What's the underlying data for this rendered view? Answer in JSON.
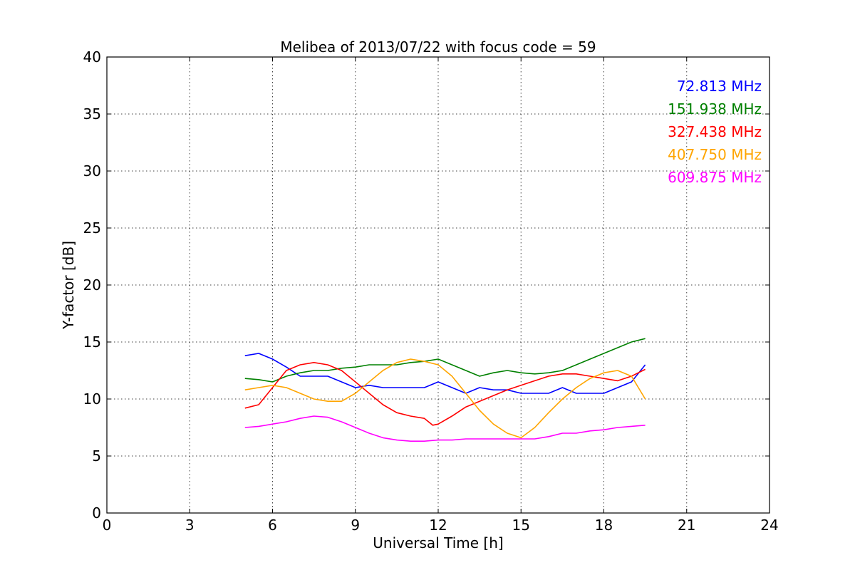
{
  "chart_data": {
    "type": "line",
    "title": "Melibea of 2013/07/22 with focus code = 59",
    "xlabel": "Universal Time [h]",
    "ylabel": "Y-factor [dB]",
    "xlim": [
      0,
      24
    ],
    "ylim": [
      0,
      40
    ],
    "xticks": [
      0,
      3,
      6,
      9,
      12,
      15,
      18,
      21,
      24
    ],
    "yticks": [
      0,
      5,
      10,
      15,
      20,
      25,
      30,
      35,
      40
    ],
    "grid": true,
    "legend": "top-right",
    "series": [
      {
        "name": "72.813 MHz",
        "color": "#0000ff",
        "x": [
          5.0,
          5.5,
          6.0,
          6.5,
          7.0,
          7.5,
          8.0,
          8.5,
          9.0,
          9.5,
          10.0,
          10.5,
          11.0,
          11.5,
          12.0,
          12.5,
          13.0,
          13.5,
          14.0,
          14.5,
          15.0,
          15.5,
          16.0,
          16.5,
          17.0,
          17.5,
          18.0,
          18.5,
          19.0,
          19.5
        ],
        "y": [
          13.8,
          14.0,
          13.5,
          12.8,
          12.0,
          12.0,
          12.0,
          11.5,
          11.0,
          11.2,
          11.0,
          11.0,
          11.0,
          11.0,
          11.5,
          11.0,
          10.5,
          11.0,
          10.8,
          10.8,
          10.5,
          10.5,
          10.5,
          11.0,
          10.5,
          10.5,
          10.5,
          11.0,
          11.5,
          13.0
        ]
      },
      {
        "name": "151.938 MHz",
        "color": "#008000",
        "x": [
          5.0,
          5.5,
          6.0,
          6.5,
          7.0,
          7.5,
          8.0,
          8.5,
          9.0,
          9.5,
          10.0,
          10.5,
          11.0,
          11.5,
          12.0,
          12.5,
          13.0,
          13.5,
          14.0,
          14.5,
          15.0,
          15.5,
          16.0,
          16.5,
          17.0,
          17.5,
          18.0,
          18.5,
          19.0,
          19.5
        ],
        "y": [
          11.8,
          11.7,
          11.5,
          12.0,
          12.3,
          12.5,
          12.5,
          12.7,
          12.8,
          13.0,
          13.0,
          13.0,
          13.2,
          13.3,
          13.5,
          13.0,
          12.5,
          12.0,
          12.3,
          12.5,
          12.3,
          12.2,
          12.3,
          12.5,
          13.0,
          13.5,
          14.0,
          14.5,
          15.0,
          15.3
        ]
      },
      {
        "name": "327.438 MHz",
        "color": "#ff0000",
        "x": [
          5.0,
          5.5,
          6.0,
          6.5,
          7.0,
          7.5,
          8.0,
          8.5,
          9.0,
          9.5,
          10.0,
          10.5,
          11.0,
          11.5,
          11.8,
          12.0,
          12.5,
          13.0,
          13.5,
          14.0,
          14.5,
          15.0,
          15.5,
          16.0,
          16.5,
          17.0,
          17.5,
          18.0,
          18.5,
          19.0,
          19.5
        ],
        "y": [
          9.2,
          9.5,
          11.0,
          12.5,
          13.0,
          13.2,
          13.0,
          12.5,
          11.5,
          10.5,
          9.5,
          8.8,
          8.5,
          8.3,
          7.7,
          7.8,
          8.5,
          9.3,
          9.8,
          10.3,
          10.8,
          11.2,
          11.6,
          12.0,
          12.2,
          12.2,
          12.0,
          11.8,
          11.6,
          12.0,
          12.6
        ]
      },
      {
        "name": "407.750 MHz",
        "color": "#ffa500",
        "x": [
          5.0,
          5.5,
          6.0,
          6.5,
          7.0,
          7.5,
          8.0,
          8.5,
          9.0,
          9.5,
          10.0,
          10.5,
          11.0,
          11.5,
          12.0,
          12.5,
          13.0,
          13.5,
          14.0,
          14.5,
          15.0,
          15.5,
          16.0,
          16.5,
          17.0,
          17.5,
          18.0,
          18.5,
          19.0,
          19.5
        ],
        "y": [
          10.8,
          11.0,
          11.2,
          11.0,
          10.5,
          10.0,
          9.8,
          9.8,
          10.5,
          11.5,
          12.5,
          13.2,
          13.5,
          13.3,
          13.0,
          12.0,
          10.5,
          9.0,
          7.8,
          7.0,
          6.6,
          7.5,
          8.8,
          10.0,
          11.0,
          11.8,
          12.3,
          12.5,
          12.0,
          10.0
        ]
      },
      {
        "name": "609.875 MHz",
        "color": "#ff00ff",
        "x": [
          5.0,
          5.5,
          6.0,
          6.5,
          7.0,
          7.5,
          8.0,
          8.5,
          9.0,
          9.5,
          10.0,
          10.5,
          11.0,
          11.5,
          12.0,
          12.5,
          13.0,
          13.5,
          14.0,
          14.5,
          15.0,
          15.5,
          16.0,
          16.5,
          17.0,
          17.5,
          18.0,
          18.5,
          19.0,
          19.5
        ],
        "y": [
          7.5,
          7.6,
          7.8,
          8.0,
          8.3,
          8.5,
          8.4,
          8.0,
          7.5,
          7.0,
          6.6,
          6.4,
          6.3,
          6.3,
          6.4,
          6.4,
          6.5,
          6.5,
          6.5,
          6.5,
          6.5,
          6.5,
          6.7,
          7.0,
          7.0,
          7.2,
          7.3,
          7.5,
          7.6,
          7.7
        ]
      }
    ]
  }
}
